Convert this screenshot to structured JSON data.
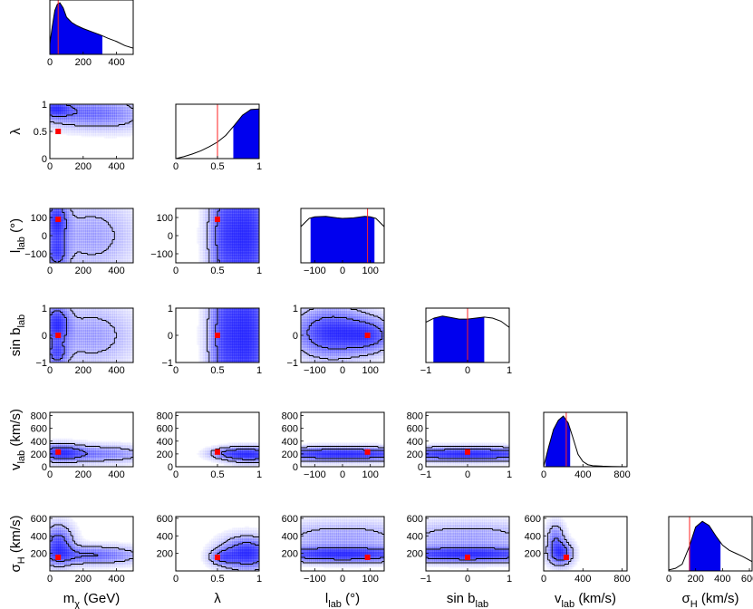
{
  "chart_data": {
    "type": "corner",
    "parameters": [
      {
        "key": "m",
        "label": "m",
        "sub": "χ",
        "unit": " (GeV)",
        "range": [
          0,
          500
        ],
        "ticks": [
          0,
          200,
          400
        ],
        "truth": 50
      },
      {
        "key": "lambda",
        "label": "λ",
        "sub": "",
        "unit": "",
        "range": [
          0,
          1
        ],
        "ticks": [
          0,
          0.5,
          1
        ],
        "truth": 0.5
      },
      {
        "key": "l",
        "label": "l",
        "sub": "lab",
        "unit": " (°)",
        "range": [
          -150,
          150
        ],
        "ticks": [
          -100,
          0,
          100
        ],
        "truth": 90
      },
      {
        "key": "sinb",
        "label": "sin b",
        "sub": "lab",
        "unit": "",
        "range": [
          -1,
          1
        ],
        "ticks": [
          -1,
          0,
          1
        ],
        "truth": 0
      },
      {
        "key": "v",
        "label": "v",
        "sub": "lab",
        "unit": " (km/s)",
        "range": [
          0,
          850
        ],
        "ticks": [
          0,
          400,
          800
        ],
        "yticks": [
          0,
          200,
          400,
          600,
          800
        ],
        "truth": 230
      },
      {
        "key": "sigma",
        "label": "σ",
        "sub": "H",
        "unit": " (km/s)",
        "range": [
          0,
          620
        ],
        "ticks": [
          0,
          200,
          400,
          600
        ],
        "yticks": [
          200,
          400,
          600
        ],
        "truth": 155
      }
    ],
    "marginals": [
      {
        "param": "m",
        "x": [
          0,
          15,
          30,
          45,
          60,
          80,
          100,
          130,
          160,
          200,
          250,
          300,
          350,
          400,
          450,
          500
        ],
        "y": [
          0.2,
          0.55,
          0.85,
          0.97,
          1.0,
          0.9,
          0.72,
          0.62,
          0.56,
          0.5,
          0.44,
          0.38,
          0.31,
          0.25,
          0.17,
          0.12
        ],
        "ci": [
          0,
          315
        ]
      },
      {
        "param": "lambda",
        "x": [
          0,
          0.1,
          0.2,
          0.3,
          0.4,
          0.5,
          0.6,
          0.7,
          0.8,
          0.9,
          1.0
        ],
        "y": [
          0.0,
          0.04,
          0.09,
          0.15,
          0.23,
          0.32,
          0.45,
          0.64,
          0.84,
          0.95,
          0.96
        ],
        "ci": [
          0.69,
          1.0
        ]
      },
      {
        "param": "l",
        "x": [
          -150,
          -120,
          -100,
          -60,
          -20,
          0,
          40,
          80,
          100,
          120,
          150
        ],
        "y": [
          0.7,
          0.86,
          0.89,
          0.9,
          0.87,
          0.86,
          0.87,
          0.9,
          0.89,
          0.86,
          0.7
        ],
        "ci": [
          -115,
          115
        ]
      },
      {
        "param": "sinb",
        "x": [
          -1,
          -0.8,
          -0.6,
          -0.4,
          -0.2,
          0,
          0.2,
          0.4,
          0.6,
          0.8,
          1
        ],
        "y": [
          0.78,
          0.86,
          0.9,
          0.87,
          0.84,
          0.84,
          0.86,
          0.88,
          0.86,
          0.8,
          0.68
        ],
        "ci": [
          -0.82,
          0.4
        ]
      },
      {
        "param": "v",
        "x": [
          0,
          50,
          100,
          150,
          200,
          250,
          300,
          350,
          400,
          450,
          500,
          600,
          700,
          850
        ],
        "y": [
          0.0,
          0.38,
          0.72,
          0.9,
          0.98,
          0.85,
          0.55,
          0.24,
          0.1,
          0.04,
          0.02,
          0.01,
          0.005,
          0.0
        ],
        "ci": [
          20,
          270
        ]
      },
      {
        "param": "sigma",
        "x": [
          0,
          50,
          100,
          150,
          200,
          250,
          300,
          350,
          400,
          450,
          500,
          550,
          620
        ],
        "y": [
          0.02,
          0.05,
          0.13,
          0.45,
          0.85,
          0.96,
          0.88,
          0.68,
          0.5,
          0.4,
          0.34,
          0.28,
          0.18
        ],
        "ci": [
          150,
          385
        ]
      }
    ],
    "joint": [
      {
        "row": 1,
        "col": 0,
        "peaks": [
          {
            "x": 30,
            "y": 0.92,
            "sx": 60,
            "sy": 0.1,
            "a": 0.9
          },
          {
            "x": 150,
            "y": 0.85,
            "sx": 180,
            "sy": 0.18,
            "a": 0.7
          },
          {
            "x": 400,
            "y": 0.8,
            "sx": 150,
            "sy": 0.2,
            "a": 0.4
          }
        ]
      },
      {
        "row": 2,
        "col": 0,
        "peaks": [
          {
            "x": 40,
            "y": 80,
            "sx": 45,
            "sy": 80,
            "a": 0.9
          },
          {
            "x": 40,
            "y": -100,
            "sx": 45,
            "sy": 60,
            "a": 0.7
          },
          {
            "x": 250,
            "y": 0,
            "sx": 180,
            "sy": 140,
            "a": 0.35
          }
        ]
      },
      {
        "row": 2,
        "col": 1,
        "peaks": [
          {
            "x": 0.85,
            "y": 0,
            "sx": 0.2,
            "sy": 250,
            "a": 0.6
          },
          {
            "x": 0.55,
            "y": 0,
            "sx": 0.12,
            "sy": 250,
            "a": 0.3
          }
        ]
      },
      {
        "row": 3,
        "col": 0,
        "peaks": [
          {
            "x": 40,
            "y": 0.4,
            "sx": 50,
            "sy": 0.5,
            "a": 0.85
          },
          {
            "x": 40,
            "y": -0.7,
            "sx": 45,
            "sy": 0.3,
            "a": 0.6
          },
          {
            "x": 250,
            "y": 0,
            "sx": 180,
            "sy": 0.8,
            "a": 0.35
          }
        ]
      },
      {
        "row": 3,
        "col": 1,
        "peaks": [
          {
            "x": 0.85,
            "y": 0,
            "sx": 0.2,
            "sy": 2,
            "a": 0.6
          },
          {
            "x": 0.55,
            "y": 0,
            "sx": 0.12,
            "sy": 2,
            "a": 0.3
          }
        ]
      },
      {
        "row": 3,
        "col": 2,
        "peaks": [
          {
            "x": -40,
            "y": 0.1,
            "sx": 90,
            "sy": 0.6,
            "a": 0.75
          },
          {
            "x": 100,
            "y": 0.0,
            "sx": 60,
            "sy": 0.4,
            "a": 0.5
          }
        ]
      },
      {
        "row": 4,
        "col": 0,
        "peaks": [
          {
            "x": 60,
            "y": 220,
            "sx": 90,
            "sy": 90,
            "a": 0.95
          },
          {
            "x": 300,
            "y": 200,
            "sx": 200,
            "sy": 90,
            "a": 0.6
          }
        ]
      },
      {
        "row": 4,
        "col": 1,
        "peaks": [
          {
            "x": 0.9,
            "y": 190,
            "sx": 0.2,
            "sy": 80,
            "a": 0.85
          },
          {
            "x": 0.6,
            "y": 210,
            "sx": 0.15,
            "sy": 60,
            "a": 0.4
          }
        ]
      },
      {
        "row": 4,
        "col": 2,
        "peaks": [
          {
            "x": 0,
            "y": 200,
            "sx": 200,
            "sy": 70,
            "a": 0.85
          }
        ]
      },
      {
        "row": 4,
        "col": 3,
        "peaks": [
          {
            "x": 0,
            "y": 200,
            "sx": 1.4,
            "sy": 70,
            "a": 0.85
          }
        ]
      },
      {
        "row": 5,
        "col": 0,
        "peaks": [
          {
            "x": 50,
            "y": 300,
            "sx": 60,
            "sy": 150,
            "a": 0.9
          },
          {
            "x": 250,
            "y": 180,
            "sx": 200,
            "sy": 70,
            "a": 0.7
          }
        ]
      },
      {
        "row": 5,
        "col": 1,
        "peaks": [
          {
            "x": 0.85,
            "y": 200,
            "sx": 0.2,
            "sy": 120,
            "a": 0.8
          },
          {
            "x": 0.55,
            "y": 160,
            "sx": 0.1,
            "sy": 60,
            "a": 0.4
          }
        ]
      },
      {
        "row": 5,
        "col": 2,
        "peaks": [
          {
            "x": 0,
            "y": 190,
            "sx": 200,
            "sy": 60,
            "a": 0.85
          },
          {
            "x": 0,
            "y": 400,
            "sx": 200,
            "sy": 120,
            "a": 0.3
          }
        ]
      },
      {
        "row": 5,
        "col": 3,
        "peaks": [
          {
            "x": 0,
            "y": 190,
            "sx": 1.4,
            "sy": 60,
            "a": 0.85
          },
          {
            "x": 0,
            "y": 400,
            "sx": 1.4,
            "sy": 120,
            "a": 0.3
          }
        ]
      },
      {
        "row": 5,
        "col": 4,
        "peaks": [
          {
            "x": 170,
            "y": 200,
            "sx": 80,
            "sy": 90,
            "a": 0.9
          },
          {
            "x": 120,
            "y": 380,
            "sx": 60,
            "sy": 120,
            "a": 0.5
          }
        ]
      }
    ],
    "colors": {
      "fill": "#0000ee",
      "truth_line": "#ff2222",
      "truth_marker": "#ff0000",
      "contour": "#000000",
      "density": "#1a1aff"
    }
  }
}
